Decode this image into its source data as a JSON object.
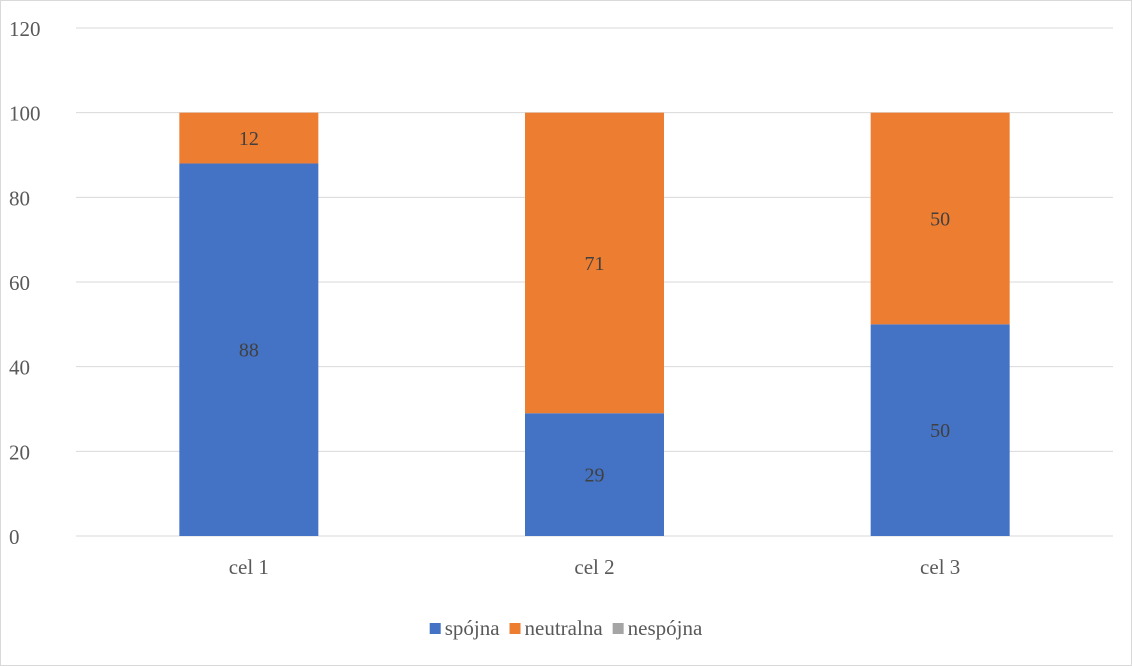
{
  "chart_data": {
    "type": "bar",
    "stacked": true,
    "categories": [
      "cel 1",
      "cel 2",
      "cel 3"
    ],
    "series": [
      {
        "name": "spójna",
        "values": [
          88,
          29,
          50
        ],
        "color": "#4472C4"
      },
      {
        "name": "neutralna",
        "values": [
          12,
          71,
          50
        ],
        "color": "#ED7D31"
      },
      {
        "name": "nespójna",
        "values": [
          0,
          0,
          0
        ],
        "color": "#A5A5A5"
      }
    ],
    "ylim": [
      0,
      120
    ],
    "yticks": [
      0,
      20,
      40,
      60,
      80,
      100,
      120
    ],
    "gridlines": true,
    "legend_position": "bottom",
    "title": "",
    "xlabel": "",
    "ylabel": ""
  }
}
